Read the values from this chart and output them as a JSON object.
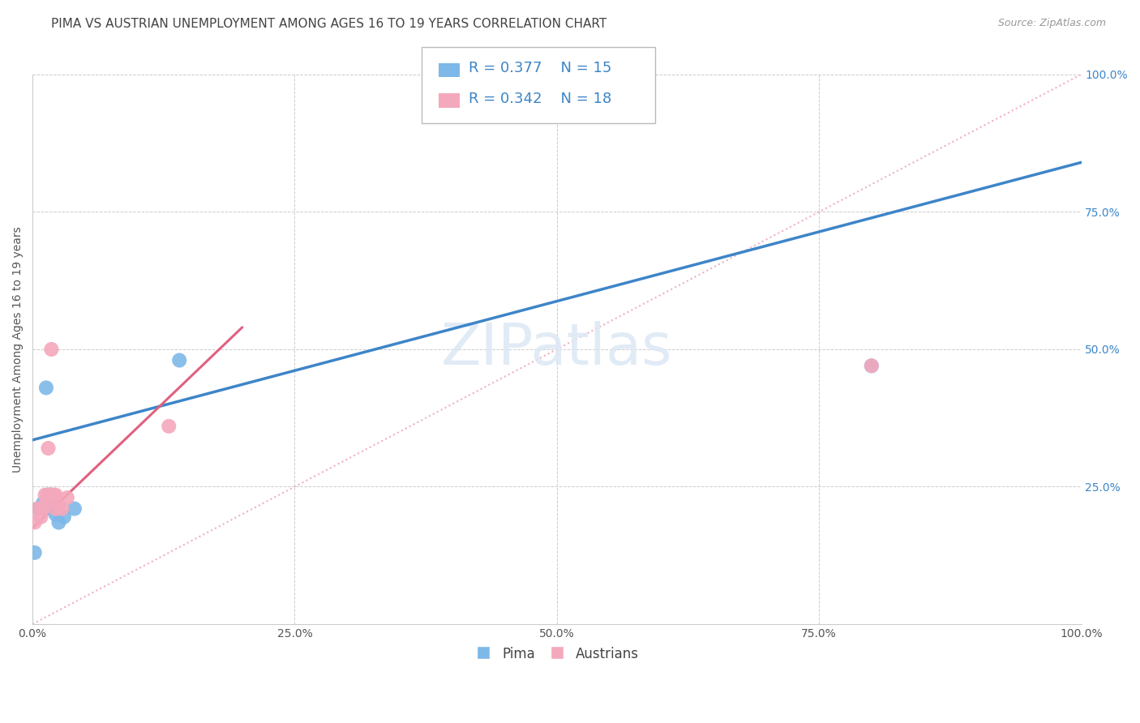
{
  "title": "PIMA VS AUSTRIAN UNEMPLOYMENT AMONG AGES 16 TO 19 YEARS CORRELATION CHART",
  "source": "Source: ZipAtlas.com",
  "ylabel": "Unemployment Among Ages 16 to 19 years",
  "xlim": [
    0,
    1
  ],
  "ylim": [
    0,
    1
  ],
  "xticks": [
    0.0,
    0.25,
    0.5,
    0.75,
    1.0
  ],
  "yticks": [
    0.25,
    0.5,
    0.75,
    1.0
  ],
  "xticklabels": [
    "0.0%",
    "25.0%",
    "50.0%",
    "75.0%",
    "100.0%"
  ],
  "yticklabels": [
    "25.0%",
    "50.0%",
    "75.0%",
    "100.0%"
  ],
  "pima_color": "#7db8e8",
  "austrians_color": "#f4a8bc",
  "pima_R": 0.377,
  "pima_N": 15,
  "austrians_R": 0.342,
  "austrians_N": 18,
  "legend_color": "#3d85c8",
  "pima_x": [
    0.002,
    0.005,
    0.01,
    0.013,
    0.015,
    0.015,
    0.018,
    0.018,
    0.02,
    0.022,
    0.025,
    0.03,
    0.04,
    0.14,
    0.8
  ],
  "pima_y": [
    0.13,
    0.21,
    0.22,
    0.43,
    0.22,
    0.235,
    0.22,
    0.235,
    0.21,
    0.2,
    0.185,
    0.195,
    0.21,
    0.48,
    0.47
  ],
  "austrians_x": [
    0.002,
    0.005,
    0.008,
    0.01,
    0.012,
    0.013,
    0.015,
    0.015,
    0.017,
    0.018,
    0.02,
    0.022,
    0.022,
    0.025,
    0.028,
    0.033,
    0.13,
    0.8
  ],
  "austrians_y": [
    0.185,
    0.21,
    0.195,
    0.21,
    0.235,
    0.22,
    0.32,
    0.235,
    0.235,
    0.5,
    0.235,
    0.21,
    0.235,
    0.215,
    0.21,
    0.23,
    0.36,
    0.47
  ],
  "pima_line_color": "#3d85c8",
  "pima_line_x": [
    0.0,
    1.0
  ],
  "pima_line_y": [
    0.335,
    0.84
  ],
  "austrians_line_color": "#e06080",
  "austrians_line_x": [
    0.0,
    0.2
  ],
  "austrians_line_y": [
    0.175,
    0.54
  ],
  "diag_color": "#f0b0c0",
  "background_color": "#ffffff",
  "grid_color": "#cccccc",
  "title_fontsize": 11,
  "axis_label_fontsize": 10,
  "tick_fontsize": 10,
  "legend_fontsize": 13,
  "watermark": "ZIPatlas"
}
